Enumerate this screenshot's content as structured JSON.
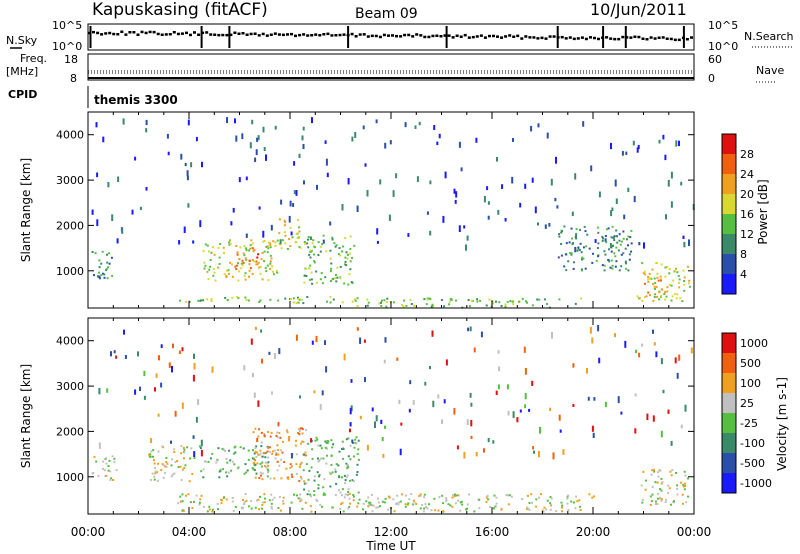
{
  "header": {
    "station": "Kapuskasing (fitACF)",
    "beam": "Beam 09",
    "date": "10/Jun/2011"
  },
  "aux": {
    "nsky_label": "N.Sky",
    "nsearch_label": "N.Search",
    "nsky_ticks": [
      "10^5",
      "10^0"
    ],
    "nsearch_ticks": [
      "10^5",
      "10^0"
    ],
    "freq_label": "Freq.",
    "freq_unit": "[MHz]",
    "freq_ticks": [
      "18",
      "8"
    ],
    "nave_label": "Nave",
    "nave_ticks": [
      "60",
      "0"
    ],
    "cpid_label": "CPID",
    "cpid_value": "themis 3300"
  },
  "colors": {
    "power": [
      "#1a1aff",
      "#2a4fa8",
      "#3a8a6a",
      "#55c040",
      "#d8d830",
      "#f0a020",
      "#f06010",
      "#e01010"
    ],
    "velocity": [
      "#1a1aff",
      "#2a4fa8",
      "#3a8a6a",
      "#55c040",
      "#c0c0c0",
      "#f0a020",
      "#f06010",
      "#e01010"
    ]
  },
  "chart_data": [
    {
      "type": "heatmap",
      "title": "Power",
      "xlabel": "",
      "ylabel": "Slant Range [km]",
      "xlim": [
        "00:00",
        "24:00"
      ],
      "ylim": [
        180,
        4500
      ],
      "x_ticks": [
        "00:00",
        "04:00",
        "08:00",
        "12:00",
        "16:00",
        "20:00",
        "00:00"
      ],
      "y_ticks": [
        1000,
        2000,
        3000,
        4000
      ],
      "colorbar_label": "Power [dB]",
      "colorbar_ticks": [
        "4",
        "8",
        "12",
        "16",
        "20",
        "24",
        "28"
      ],
      "regions": [
        {
          "t0": 0.1,
          "t1": 1.1,
          "r0": 850,
          "r1": 1500,
          "level": 2
        },
        {
          "t0": 3.5,
          "t1": 10.5,
          "r0": 300,
          "r1": 450,
          "level": 3
        },
        {
          "t0": 4.5,
          "t1": 7.5,
          "r0": 800,
          "r1": 1700,
          "level": 4
        },
        {
          "t0": 5.7,
          "t1": 6.7,
          "r0": 1050,
          "r1": 1550,
          "level": 6
        },
        {
          "t0": 7.5,
          "t1": 8.4,
          "r0": 1500,
          "r1": 2300,
          "level": 4
        },
        {
          "t0": 8.5,
          "t1": 10.6,
          "r0": 700,
          "r1": 1800,
          "level": 3
        },
        {
          "t0": 10.5,
          "t1": 19.5,
          "r0": 200,
          "r1": 420,
          "level": 3
        },
        {
          "t0": 18.5,
          "t1": 21.5,
          "r0": 1000,
          "r1": 2000,
          "level": 2
        },
        {
          "t0": 21.7,
          "t1": 23.8,
          "r0": 350,
          "r1": 1200,
          "level": 4
        },
        {
          "t0": 22.0,
          "t1": 22.9,
          "r0": 500,
          "r1": 900,
          "level": 5
        }
      ]
    },
    {
      "type": "heatmap",
      "title": "Velocity",
      "xlabel": "Time UT",
      "ylabel": "Slant Range [km]",
      "xlim": [
        "00:00",
        "24:00"
      ],
      "ylim": [
        180,
        4500
      ],
      "x_ticks": [
        "00:00",
        "04:00",
        "08:00",
        "12:00",
        "16:00",
        "20:00",
        "00:00"
      ],
      "y_ticks": [
        1000,
        2000,
        3000,
        4000
      ],
      "colorbar_label": "Velocity [m s-1]",
      "colorbar_ticks": [
        "1000",
        "500",
        "100",
        "25",
        "-25",
        "-100",
        "-500",
        "-1000"
      ],
      "regions": [
        {
          "t0": 0.1,
          "t1": 1.1,
          "r0": 900,
          "r1": 1500,
          "level": 4
        },
        {
          "t0": 2.3,
          "t1": 4.2,
          "r0": 900,
          "r1": 1700,
          "level": 4
        },
        {
          "t0": 4.3,
          "t1": 7.2,
          "r0": 1000,
          "r1": 1700,
          "level": 3
        },
        {
          "t0": 6.5,
          "t1": 8.6,
          "r0": 900,
          "r1": 2100,
          "level": 5
        },
        {
          "t0": 8.5,
          "t1": 10.7,
          "r0": 600,
          "r1": 1900,
          "level": 3
        },
        {
          "t0": 3.5,
          "t1": 20.0,
          "r0": 250,
          "r1": 650,
          "level": 4
        },
        {
          "t0": 21.8,
          "t1": 23.8,
          "r0": 400,
          "r1": 1200,
          "level": 4
        }
      ]
    }
  ]
}
